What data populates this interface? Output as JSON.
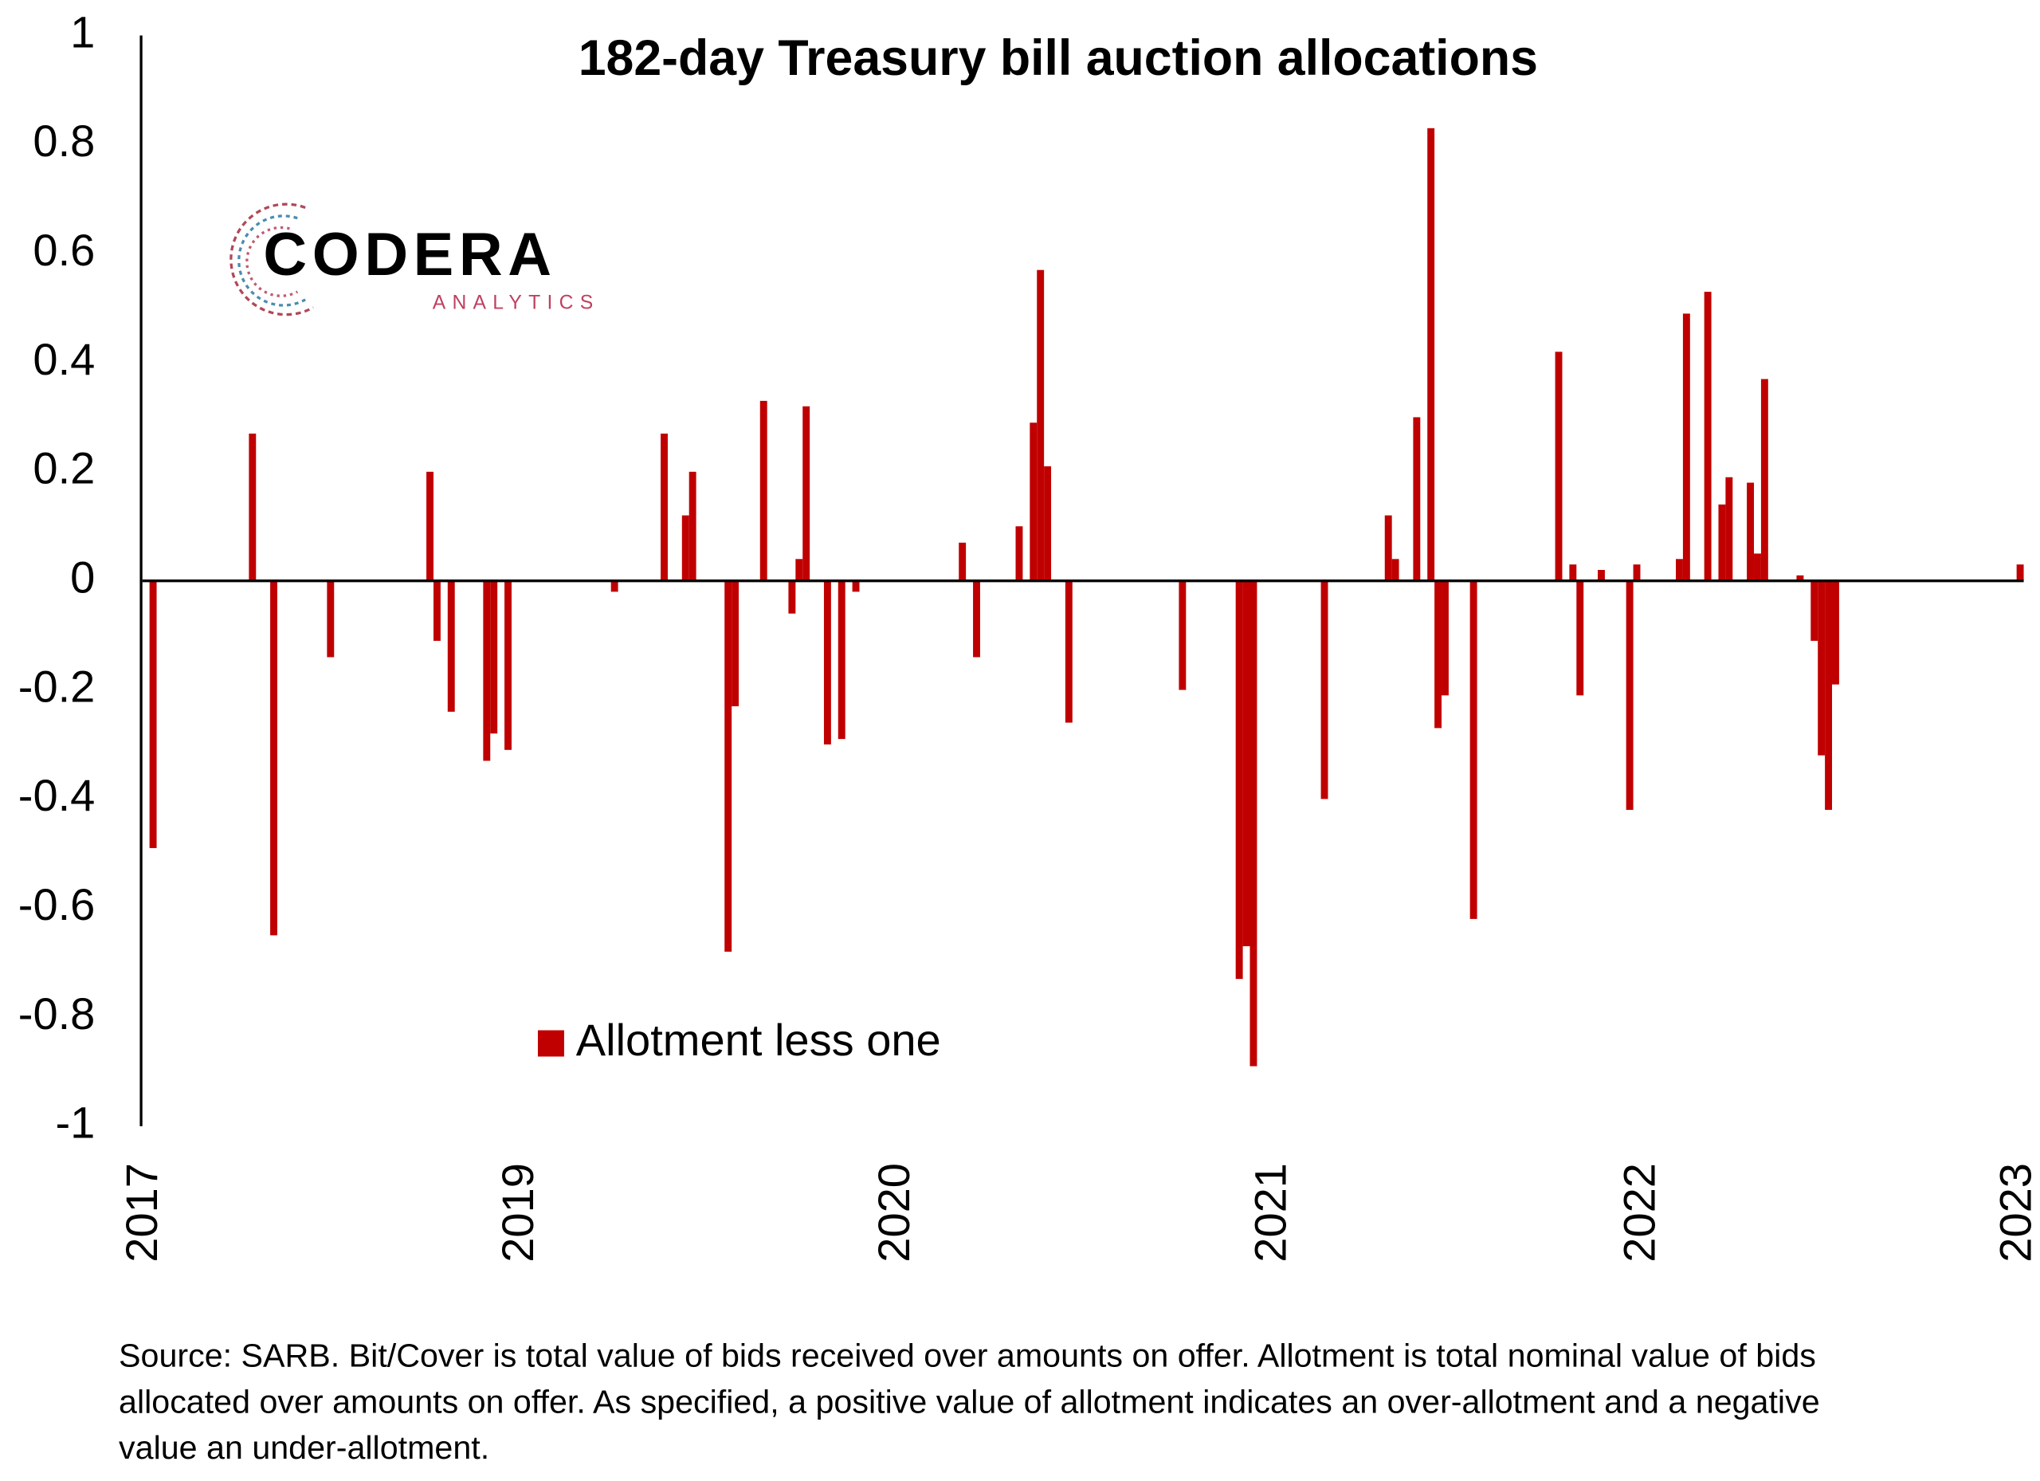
{
  "chart_data": {
    "type": "bar",
    "title": "182-day Treasury bill auction allocations",
    "logo": {
      "name": "CODERA",
      "subtitle": "ANALYTICS"
    },
    "note": "Source: SARB. Bit/Cover is total value of bids received over amounts on offer. Allotment is total nominal value of bids allocated over amounts on offer. As specified, a positive value of allotment indicates an over-allotment and a negative value an under-allotment.",
    "ylim": [
      -1,
      1
    ],
    "yticks": [
      -1,
      -0.8,
      -0.6,
      -0.4,
      -0.2,
      0,
      0.2,
      0.4,
      0.6,
      0.8,
      1
    ],
    "grid": false,
    "categories": [
      "2017",
      null,
      null,
      null,
      null,
      null,
      null,
      null,
      null,
      null,
      null,
      null,
      null,
      null,
      null,
      null,
      null,
      null,
      null,
      null,
      null,
      null,
      null,
      null,
      null,
      null,
      null,
      null,
      null,
      null,
      null,
      null,
      null,
      null,
      null,
      null,
      null,
      null,
      null,
      null,
      null,
      null,
      null,
      null,
      null,
      null,
      null,
      null,
      null,
      null,
      null,
      null,
      null,
      "2019",
      null,
      null,
      null,
      null,
      null,
      null,
      null,
      null,
      null,
      null,
      null,
      null,
      null,
      null,
      null,
      null,
      null,
      null,
      null,
      null,
      null,
      null,
      null,
      null,
      null,
      null,
      null,
      null,
      null,
      null,
      null,
      null,
      null,
      null,
      null,
      null,
      null,
      null,
      null,
      null,
      null,
      null,
      null,
      null,
      null,
      null,
      null,
      null,
      null,
      null,
      null,
      null,
      "2020",
      null,
      null,
      null,
      null,
      null,
      null,
      null,
      null,
      null,
      null,
      null,
      null,
      null,
      null,
      null,
      null,
      null,
      null,
      null,
      null,
      null,
      null,
      null,
      null,
      null,
      null,
      null,
      null,
      null,
      null,
      null,
      null,
      null,
      null,
      null,
      null,
      null,
      null,
      null,
      null,
      null,
      null,
      null,
      null,
      null,
      null,
      null,
      null,
      null,
      null,
      null,
      null,
      "2021",
      null,
      null,
      null,
      null,
      null,
      null,
      null,
      null,
      null,
      null,
      null,
      null,
      null,
      null,
      null,
      null,
      null,
      null,
      null,
      null,
      null,
      null,
      null,
      null,
      null,
      null,
      null,
      null,
      null,
      null,
      null,
      null,
      null,
      null,
      null,
      null,
      null,
      null,
      null,
      null,
      null,
      null,
      null,
      null,
      null,
      null,
      null,
      null,
      null,
      null,
      null,
      "2022",
      null,
      null,
      null,
      null,
      null,
      null,
      null,
      null,
      null,
      null,
      null,
      null,
      null,
      null,
      null,
      null,
      null,
      null,
      null,
      null,
      null,
      null,
      null,
      null,
      null,
      null,
      null,
      null,
      null,
      null,
      null,
      null,
      null,
      null,
      null,
      null,
      null,
      null,
      null,
      null,
      null,
      null,
      null,
      null,
      null,
      null,
      null,
      null,
      null,
      null,
      null,
      null,
      "2023"
    ],
    "legend": "lower-left",
    "series": [
      {
        "name": "Allotment less one",
        "color": "#c00000",
        "values": [
          0,
          -0.49,
          0,
          0,
          0,
          0,
          0,
          0,
          0,
          0,
          0,
          0,
          0,
          0,
          0,
          0.27,
          0,
          0,
          -0.65,
          0,
          0,
          0,
          0,
          0,
          0,
          0,
          -0.14,
          0,
          0,
          0,
          0,
          0,
          0,
          0,
          0,
          0,
          0,
          0,
          0,
          0,
          0.2,
          -0.11,
          0,
          -0.24,
          0,
          0,
          0,
          0,
          -0.33,
          -0.28,
          0,
          -0.31,
          0,
          0,
          0,
          0,
          0,
          0,
          0,
          0,
          0,
          0,
          0,
          0,
          0,
          0,
          -0.02,
          0,
          0,
          0,
          0,
          0,
          0,
          0.27,
          0,
          0,
          0.12,
          0.2,
          0,
          0,
          0,
          0,
          -0.68,
          -0.23,
          0,
          0,
          0,
          0.33,
          0,
          0,
          0,
          -0.06,
          0.04,
          0.32,
          0,
          0,
          -0.3,
          0,
          -0.29,
          0,
          -0.02,
          0,
          0,
          0,
          0,
          0,
          0,
          0,
          0,
          0,
          0,
          0,
          0,
          0,
          0,
          0.07,
          0,
          -0.14,
          0,
          0,
          0,
          0,
          0,
          0.1,
          0,
          0.29,
          0.57,
          0.21,
          0,
          0,
          -0.26,
          0,
          0,
          0,
          0,
          0,
          0,
          0,
          0,
          0,
          0,
          0,
          0,
          0,
          0,
          0,
          -0.2,
          0,
          0,
          0,
          0,
          0,
          0,
          0,
          -0.73,
          -0.67,
          -0.89,
          0,
          0,
          0,
          0,
          0,
          0,
          0,
          0,
          0,
          -0.4,
          0,
          0,
          0,
          0,
          0,
          0,
          0,
          0,
          0.12,
          0.04,
          0,
          0,
          0.3,
          0,
          0.83,
          -0.27,
          -0.21,
          0,
          0,
          0,
          -0.62,
          0,
          0,
          0,
          0,
          0,
          0,
          0,
          0,
          0,
          0,
          0,
          0.42,
          0,
          0.03,
          -0.21,
          0,
          0,
          0.02,
          0,
          0,
          0,
          -0.42,
          0.03,
          0,
          0,
          0,
          0,
          0,
          0.04,
          0.49,
          0,
          0,
          0.53,
          0,
          0.14,
          0.19,
          0,
          0,
          0.18,
          0.05,
          0.37,
          0,
          0,
          0,
          0,
          0.01,
          0,
          -0.11,
          -0.32,
          -0.42,
          -0.19,
          0,
          0,
          0,
          0,
          0,
          0,
          0,
          0,
          0,
          0,
          0,
          0,
          0,
          0,
          0,
          0,
          0,
          0,
          0,
          0,
          0,
          0,
          0,
          0,
          0,
          0.03
        ]
      }
    ]
  }
}
